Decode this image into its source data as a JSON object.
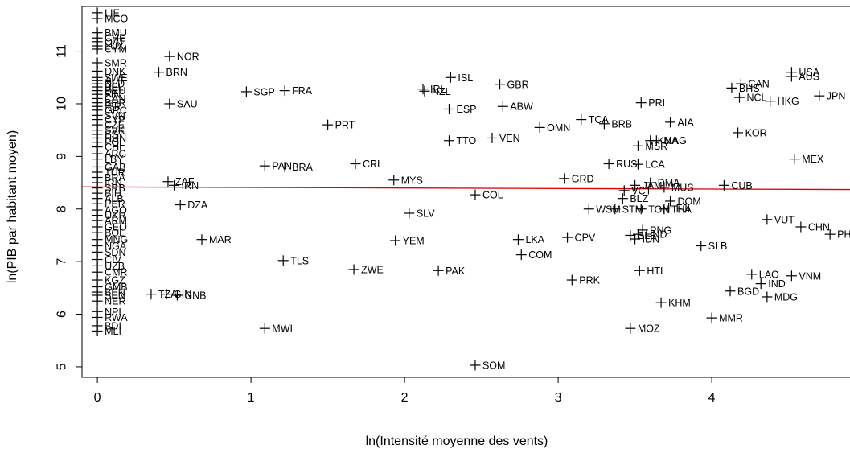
{
  "chart_data": {
    "type": "scatter",
    "title": "",
    "xlabel": "ln(Intensité moyenne des vents)",
    "ylabel": "ln(PIB par habitant moyen)",
    "xlim": [
      -0.1,
      4.9
    ],
    "ylim": [
      4.8,
      11.85
    ],
    "xticks": [
      0,
      1,
      2,
      3,
      4
    ],
    "yticks": [
      5,
      6,
      7,
      8,
      9,
      10,
      11
    ],
    "grid": false,
    "legend": "none",
    "regression_line": {
      "y_at_xmin": 8.42,
      "y_at_xmax": 8.37,
      "color": "#e00000"
    },
    "marker_color": "#000000",
    "points": [
      {
        "x": 0,
        "y": 11.73,
        "label": "LIE"
      },
      {
        "x": 0,
        "y": 11.62,
        "label": "MCO"
      },
      {
        "x": 0,
        "y": 11.35,
        "label": "BMU"
      },
      {
        "x": 0,
        "y": 11.25,
        "label": "CHE"
      },
      {
        "x": 0,
        "y": 11.18,
        "label": "QAT"
      },
      {
        "x": 0,
        "y": 11.1,
        "label": "LUX"
      },
      {
        "x": 0,
        "y": 11.04,
        "label": "CYM"
      },
      {
        "x": 0,
        "y": 10.78,
        "label": "SMR"
      },
      {
        "x": 0,
        "y": 10.62,
        "label": "DNK"
      },
      {
        "x": 0,
        "y": 10.5,
        "label": "SWE"
      },
      {
        "x": 0,
        "y": 10.44,
        "label": "AUT"
      },
      {
        "x": 0,
        "y": 10.38,
        "label": "NLD"
      },
      {
        "x": 0,
        "y": 10.32,
        "label": "BEL"
      },
      {
        "x": 0,
        "y": 10.25,
        "label": "DEU"
      },
      {
        "x": 0,
        "y": 10.18,
        "label": "FIN"
      },
      {
        "x": 0,
        "y": 10.1,
        "label": "CAN"
      },
      {
        "x": 0,
        "y": 10.02,
        "label": "BHR"
      },
      {
        "x": 0,
        "y": 9.95,
        "label": "ISR"
      },
      {
        "x": 0,
        "y": 9.88,
        "label": "GRC"
      },
      {
        "x": 0,
        "y": 9.78,
        "label": "SVN"
      },
      {
        "x": 0,
        "y": 9.7,
        "label": "CYP"
      },
      {
        "x": 0,
        "y": 9.6,
        "label": "CZE"
      },
      {
        "x": 0,
        "y": 9.5,
        "label": "SVK"
      },
      {
        "x": 0,
        "y": 9.42,
        "label": "EST"
      },
      {
        "x": 0,
        "y": 9.35,
        "label": "HUN"
      },
      {
        "x": 0,
        "y": 9.27,
        "label": "POL"
      },
      {
        "x": 0,
        "y": 9.18,
        "label": "CHL"
      },
      {
        "x": 0,
        "y": 9.05,
        "label": "ARG"
      },
      {
        "x": 0,
        "y": 8.95,
        "label": "LBY"
      },
      {
        "x": 0,
        "y": 8.8,
        "label": "GAB"
      },
      {
        "x": 0,
        "y": 8.7,
        "label": "TUR"
      },
      {
        "x": 0,
        "y": 8.6,
        "label": "BRA"
      },
      {
        "x": 0,
        "y": 8.5,
        "label": "IRN"
      },
      {
        "x": 0,
        "y": 8.4,
        "label": "SRB"
      },
      {
        "x": 0,
        "y": 8.3,
        "label": "BIH"
      },
      {
        "x": 0,
        "y": 8.2,
        "label": "ALB"
      },
      {
        "x": 0,
        "y": 8.1,
        "label": "PER"
      },
      {
        "x": 0,
        "y": 7.98,
        "label": "AGO"
      },
      {
        "x": 0,
        "y": 7.88,
        "label": "UKR"
      },
      {
        "x": 0,
        "y": 7.78,
        "label": "ARM"
      },
      {
        "x": 0,
        "y": 7.66,
        "label": "GEO"
      },
      {
        "x": 0,
        "y": 7.55,
        "label": "BOL"
      },
      {
        "x": 0,
        "y": 7.42,
        "label": "MNG"
      },
      {
        "x": 0,
        "y": 7.3,
        "label": "NGA"
      },
      {
        "x": 0,
        "y": 7.18,
        "label": "SDN"
      },
      {
        "x": 0,
        "y": 7.04,
        "label": "CIV"
      },
      {
        "x": 0,
        "y": 6.92,
        "label": "UZB"
      },
      {
        "x": 0,
        "y": 6.8,
        "label": "CMR"
      },
      {
        "x": 0,
        "y": 6.65,
        "label": "KGZ"
      },
      {
        "x": 0,
        "y": 6.52,
        "label": "GMB"
      },
      {
        "x": 0,
        "y": 6.42,
        "label": "BEN"
      },
      {
        "x": 0,
        "y": 6.36,
        "label": "SEN"
      },
      {
        "x": 0,
        "y": 6.25,
        "label": "NER"
      },
      {
        "x": 0,
        "y": 6.05,
        "label": "NPL"
      },
      {
        "x": 0,
        "y": 5.94,
        "label": "RWA"
      },
      {
        "x": 0,
        "y": 5.78,
        "label": "BDI"
      },
      {
        "x": 0,
        "y": 5.68,
        "label": "MLI"
      },
      {
        "x": 0.47,
        "y": 10.9,
        "label": "NOR"
      },
      {
        "x": 0.4,
        "y": 10.6,
        "label": "BRN"
      },
      {
        "x": 0.47,
        "y": 10.0,
        "label": "SAU"
      },
      {
        "x": 0.46,
        "y": 8.52,
        "label": "ZAF"
      },
      {
        "x": 0.5,
        "y": 8.45,
        "label": "IRN"
      },
      {
        "x": 0.54,
        "y": 8.08,
        "label": "DZA"
      },
      {
        "x": 0.68,
        "y": 7.42,
        "label": "MAR"
      },
      {
        "x": 0.35,
        "y": 6.38,
        "label": "TZA"
      },
      {
        "x": 0.45,
        "y": 6.38,
        "label": "GIN"
      },
      {
        "x": 0.52,
        "y": 6.36,
        "label": "GNB"
      },
      {
        "x": 0.97,
        "y": 10.23,
        "label": "SGP"
      },
      {
        "x": 1.22,
        "y": 10.25,
        "label": "FRA"
      },
      {
        "x": 1.5,
        "y": 9.6,
        "label": "PRT"
      },
      {
        "x": 1.09,
        "y": 8.82,
        "label": "PAN"
      },
      {
        "x": 1.22,
        "y": 8.8,
        "label": "BRA"
      },
      {
        "x": 1.68,
        "y": 8.86,
        "label": "CRI"
      },
      {
        "x": 1.21,
        "y": 7.02,
        "label": "TLS"
      },
      {
        "x": 1.67,
        "y": 6.85,
        "label": "ZWE"
      },
      {
        "x": 1.09,
        "y": 5.73,
        "label": "MWI"
      },
      {
        "x": 1.93,
        "y": 8.55,
        "label": "MYS"
      },
      {
        "x": 2.03,
        "y": 7.92,
        "label": "SLV"
      },
      {
        "x": 1.94,
        "y": 7.4,
        "label": "YEM"
      },
      {
        "x": 2.12,
        "y": 10.28,
        "label": "IRL"
      },
      {
        "x": 2.13,
        "y": 10.24,
        "label": "NZL"
      },
      {
        "x": 2.3,
        "y": 10.5,
        "label": "ISL"
      },
      {
        "x": 2.62,
        "y": 10.37,
        "label": "GBR"
      },
      {
        "x": 2.29,
        "y": 9.9,
        "label": "ESP"
      },
      {
        "x": 2.64,
        "y": 9.95,
        "label": "ABW"
      },
      {
        "x": 2.29,
        "y": 9.3,
        "label": "TTO"
      },
      {
        "x": 2.57,
        "y": 9.35,
        "label": "VEN"
      },
      {
        "x": 2.46,
        "y": 8.27,
        "label": "COL"
      },
      {
        "x": 2.22,
        "y": 6.83,
        "label": "PAK"
      },
      {
        "x": 2.74,
        "y": 7.42,
        "label": "LKA"
      },
      {
        "x": 2.76,
        "y": 7.13,
        "label": "COM"
      },
      {
        "x": 2.46,
        "y": 5.03,
        "label": "SOM"
      },
      {
        "x": 2.88,
        "y": 9.55,
        "label": "OMN"
      },
      {
        "x": 3.15,
        "y": 9.7,
        "label": "TCA"
      },
      {
        "x": 3.3,
        "y": 9.62,
        "label": "BRB"
      },
      {
        "x": 3.04,
        "y": 8.58,
        "label": "GRD"
      },
      {
        "x": 3.06,
        "y": 7.46,
        "label": "CPV"
      },
      {
        "x": 3.09,
        "y": 6.65,
        "label": "PRK"
      },
      {
        "x": 3.2,
        "y": 8.0,
        "label": "WSM"
      },
      {
        "x": 3.37,
        "y": 8.0,
        "label": "STM"
      },
      {
        "x": 3.43,
        "y": 8.35,
        "label": "VCT"
      },
      {
        "x": 3.42,
        "y": 8.2,
        "label": "BLZ"
      },
      {
        "x": 3.5,
        "y": 8.45,
        "label": "JAM"
      },
      {
        "x": 3.54,
        "y": 8.0,
        "label": "TON"
      },
      {
        "x": 3.33,
        "y": 8.86,
        "label": "RUS"
      },
      {
        "x": 3.52,
        "y": 9.2,
        "label": "MSR"
      },
      {
        "x": 3.54,
        "y": 10.02,
        "label": "PRI"
      },
      {
        "x": 3.6,
        "y": 9.3,
        "label": "KNA"
      },
      {
        "x": 3.52,
        "y": 8.85,
        "label": "LCA"
      },
      {
        "x": 3.6,
        "y": 8.5,
        "label": "DMA"
      },
      {
        "x": 3.69,
        "y": 8.41,
        "label": "MUS"
      },
      {
        "x": 3.73,
        "y": 8.15,
        "label": "DOM"
      },
      {
        "x": 3.69,
        "y": 8.0,
        "label": "THA"
      },
      {
        "x": 3.72,
        "y": 8.02,
        "label": "FJI"
      },
      {
        "x": 3.47,
        "y": 7.5,
        "label": "SLB"
      },
      {
        "x": 3.5,
        "y": 7.43,
        "label": "IDN"
      },
      {
        "x": 3.52,
        "y": 7.52,
        "label": "HND"
      },
      {
        "x": 3.55,
        "y": 7.6,
        "label": "PNG"
      },
      {
        "x": 3.53,
        "y": 6.83,
        "label": "HTI"
      },
      {
        "x": 3.47,
        "y": 5.73,
        "label": "MOZ"
      },
      {
        "x": 3.67,
        "y": 6.22,
        "label": "KHM"
      },
      {
        "x": 3.73,
        "y": 9.65,
        "label": "AIA"
      },
      {
        "x": 3.64,
        "y": 9.3,
        "label": "MAG"
      },
      {
        "x": 3.93,
        "y": 7.3,
        "label": "SLB"
      },
      {
        "x": 4.0,
        "y": 5.93,
        "label": "MMR"
      },
      {
        "x": 4.19,
        "y": 10.38,
        "label": "CAN"
      },
      {
        "x": 4.13,
        "y": 10.3,
        "label": "BHS"
      },
      {
        "x": 4.18,
        "y": 10.12,
        "label": "NCL"
      },
      {
        "x": 4.38,
        "y": 10.05,
        "label": "HKG"
      },
      {
        "x": 4.52,
        "y": 10.6,
        "label": "USA"
      },
      {
        "x": 4.52,
        "y": 10.52,
        "label": "AUS"
      },
      {
        "x": 4.7,
        "y": 10.15,
        "label": "JPN"
      },
      {
        "x": 4.17,
        "y": 9.45,
        "label": "KOR"
      },
      {
        "x": 4.54,
        "y": 8.95,
        "label": "MEX"
      },
      {
        "x": 4.08,
        "y": 8.45,
        "label": "CUB"
      },
      {
        "x": 4.36,
        "y": 7.8,
        "label": "VUT"
      },
      {
        "x": 4.58,
        "y": 7.66,
        "label": "CHN"
      },
      {
        "x": 4.77,
        "y": 7.52,
        "label": "PHL"
      },
      {
        "x": 4.26,
        "y": 6.76,
        "label": "LAO"
      },
      {
        "x": 4.32,
        "y": 6.58,
        "label": "IND"
      },
      {
        "x": 4.52,
        "y": 6.73,
        "label": "VNM"
      },
      {
        "x": 4.12,
        "y": 6.44,
        "label": "BGD"
      },
      {
        "x": 4.36,
        "y": 6.33,
        "label": "MDG"
      }
    ]
  }
}
